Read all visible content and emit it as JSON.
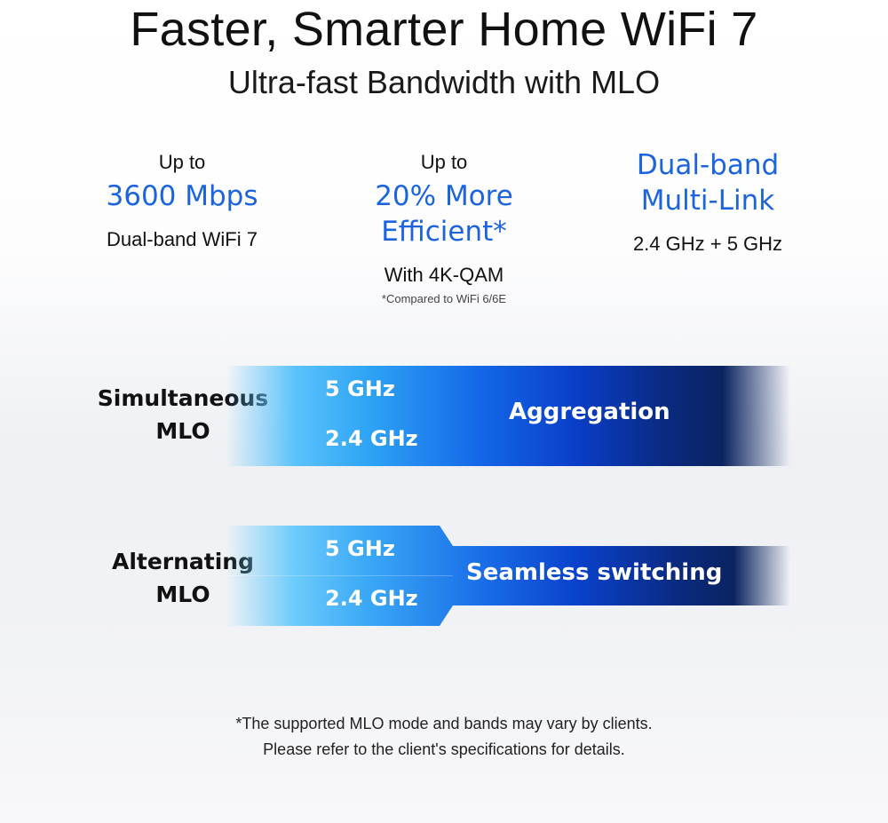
{
  "header": {
    "title": "Faster, Smarter Home WiFi 7",
    "subtitle": "Ultra-fast Bandwidth with MLO"
  },
  "features": [
    {
      "prefix": "Up to",
      "headline": "3600 Mbps",
      "detail": "Dual-band WiFi 7",
      "note": ""
    },
    {
      "prefix": "Up to",
      "headline": "20% More Efficient*",
      "detail": "With 4K-QAM",
      "note": "*Compared to WiFi 6/6E"
    },
    {
      "headline_line1": "Dual-band",
      "headline_line2": "Multi-Link",
      "detail": "2.4 GHz + 5 GHz"
    }
  ],
  "mlo_modes": [
    {
      "label_line1": "Simultaneous",
      "label_line2": "MLO",
      "band_a": "5 GHz",
      "band_b": "2.4 GHz",
      "result": "Aggregation"
    },
    {
      "label_line1": "Alternating",
      "label_line2": "MLO",
      "band_a": "5 GHz",
      "band_b": "2.4 GHz",
      "result": "Seamless switching"
    }
  ],
  "footnote": {
    "line1": "*The supported MLO mode and bands may vary by clients.",
    "line2": "Please refer to the client's specifications for details."
  },
  "colors": {
    "accent": "#1c63de",
    "band_light": "#5cc3fb",
    "band_dark": "#0b2360"
  }
}
